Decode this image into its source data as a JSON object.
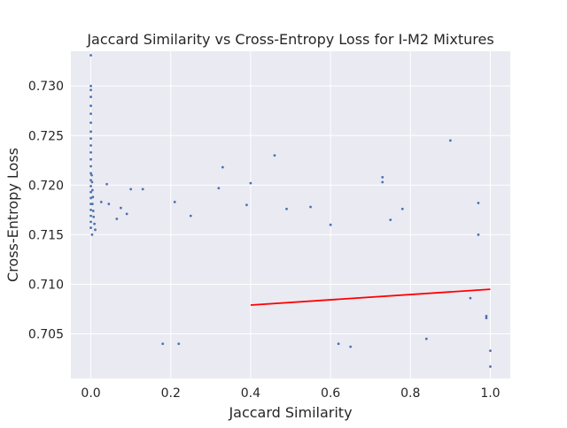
{
  "chart_data": {
    "type": "scatter",
    "title": "Jaccard Similarity vs Cross-Entropy Loss for I-M2 Mixtures",
    "xlabel": "Jaccard Similarity",
    "ylabel": "Cross-Entropy Loss",
    "xlim": [
      -0.05,
      1.05
    ],
    "ylim": [
      0.7005,
      0.7335
    ],
    "xticks": [
      0.0,
      0.2,
      0.4,
      0.6,
      0.8,
      1.0
    ],
    "xtick_labels": [
      "0.0",
      "0.2",
      "0.4",
      "0.6",
      "0.8",
      "1.0"
    ],
    "yticks": [
      0.705,
      0.71,
      0.715,
      0.72,
      0.725,
      0.73
    ],
    "ytick_labels": [
      "0.705",
      "0.710",
      "0.715",
      "0.720",
      "0.725",
      "0.730"
    ],
    "grid": true,
    "background_color": "#EAEAF2",
    "point_color": "#4C72B0",
    "trend_color": "#FF0000",
    "series": [
      {
        "kind": "scatter",
        "points": [
          [
            0.0,
            0.7331
          ],
          [
            0.0,
            0.73
          ],
          [
            0.0,
            0.7296
          ],
          [
            0.0,
            0.7289
          ],
          [
            0.0,
            0.728
          ],
          [
            0.0,
            0.7272
          ],
          [
            0.0,
            0.7263
          ],
          [
            0.0,
            0.7254
          ],
          [
            0.0,
            0.7247
          ],
          [
            0.0,
            0.724
          ],
          [
            0.0,
            0.7233
          ],
          [
            0.0,
            0.7226
          ],
          [
            0.0,
            0.7219
          ],
          [
            0.0,
            0.7212
          ],
          [
            0.0,
            0.7205
          ],
          [
            0.0,
            0.7199
          ],
          [
            0.0,
            0.7193
          ],
          [
            0.0,
            0.7187
          ],
          [
            0.0,
            0.7181
          ],
          [
            0.0,
            0.7175
          ],
          [
            0.0,
            0.7169
          ],
          [
            0.0,
            0.7163
          ],
          [
            0.0,
            0.7157
          ],
          [
            0.002,
            0.721
          ],
          [
            0.003,
            0.7203
          ],
          [
            0.004,
            0.7195
          ],
          [
            0.005,
            0.7188
          ],
          [
            0.004,
            0.7181
          ],
          [
            0.006,
            0.7174
          ],
          [
            0.007,
            0.7168
          ],
          [
            0.009,
            0.7161
          ],
          [
            0.011,
            0.7155
          ],
          [
            0.003,
            0.715
          ],
          [
            0.04,
            0.7201
          ],
          [
            0.1,
            0.7196
          ],
          [
            0.13,
            0.7196
          ],
          [
            0.21,
            0.7183
          ],
          [
            0.25,
            0.7169
          ],
          [
            0.026,
            0.7183
          ],
          [
            0.045,
            0.7181
          ],
          [
            0.075,
            0.7177
          ],
          [
            0.09,
            0.7171
          ],
          [
            0.065,
            0.7166
          ],
          [
            0.33,
            0.7218
          ],
          [
            0.32,
            0.7197
          ],
          [
            0.4,
            0.7202
          ],
          [
            0.39,
            0.718
          ],
          [
            0.46,
            0.723
          ],
          [
            0.73,
            0.7208
          ],
          [
            0.73,
            0.7203
          ],
          [
            0.9,
            0.7245
          ],
          [
            0.97,
            0.7182
          ],
          [
            0.97,
            0.715
          ],
          [
            0.99,
            0.7068
          ],
          [
            1.0,
            0.7033
          ],
          [
            1.0,
            0.7017
          ],
          [
            0.99,
            0.7066
          ],
          [
            0.95,
            0.7086
          ],
          [
            0.84,
            0.7045
          ],
          [
            0.65,
            0.7037
          ],
          [
            0.62,
            0.704
          ],
          [
            0.18,
            0.704
          ],
          [
            0.22,
            0.704
          ],
          [
            0.55,
            0.7178
          ],
          [
            0.49,
            0.7176
          ],
          [
            0.78,
            0.7176
          ],
          [
            0.75,
            0.7165
          ],
          [
            0.6,
            0.716
          ]
        ]
      },
      {
        "kind": "trend_line",
        "points": [
          [
            0.4,
            0.7079
          ],
          [
            1.0,
            0.7095
          ]
        ]
      }
    ]
  }
}
